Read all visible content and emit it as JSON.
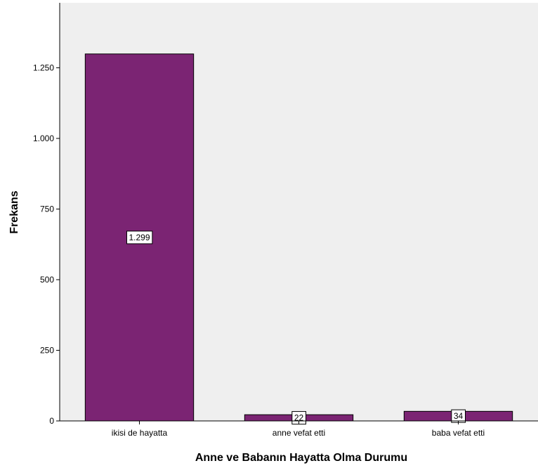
{
  "chart_data": {
    "type": "bar",
    "categories": [
      "ikisi de hayatta",
      "anne vefat etti",
      "baba vefat etti"
    ],
    "values": [
      1299,
      22,
      34
    ],
    "data_labels": [
      "1.299",
      "22",
      "34"
    ],
    "xlabel": "Anne ve Babanın Hayatta Olma Durumu",
    "ylabel": "Frekans",
    "ylim": [
      0,
      1480
    ],
    "yticks": [
      0,
      250,
      500,
      750,
      1000,
      1250
    ],
    "ytick_labels": [
      "0",
      "250",
      "500",
      "750",
      "1.000",
      "1.250"
    ],
    "bar_color": "#7b2473",
    "plot_background": "#efefef",
    "grid": false,
    "legend": "none"
  }
}
